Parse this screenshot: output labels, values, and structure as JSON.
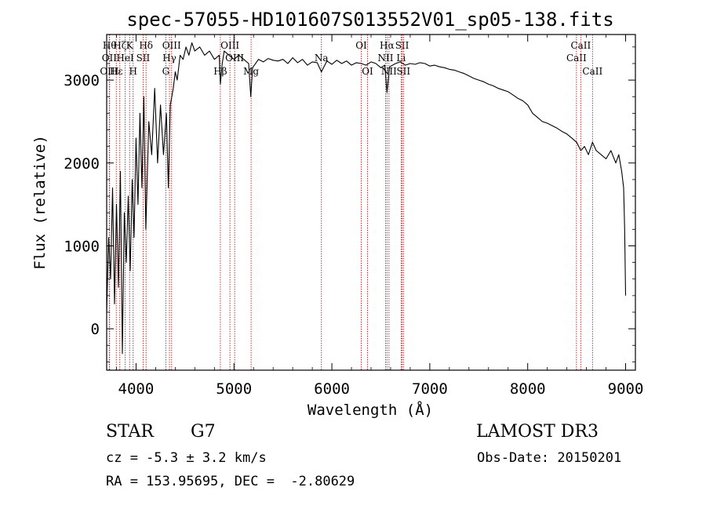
{
  "chart_data": {
    "type": "line",
    "title": "spec-57055-HD101607S013552V01_sp05-138.fits",
    "xlabel": "Wavelength (Å)",
    "ylabel": "Flux (relative)",
    "xlim": [
      3700,
      9100
    ],
    "ylim": [
      -500,
      3550
    ],
    "xticks": [
      4000,
      5000,
      6000,
      7000,
      8000,
      9000
    ],
    "yticks": [
      0,
      1000,
      2000,
      3000
    ],
    "series": [
      {
        "name": "flux",
        "x": [
          3700,
          3720,
          3740,
          3760,
          3780,
          3800,
          3820,
          3840,
          3860,
          3880,
          3900,
          3920,
          3940,
          3960,
          3980,
          4000,
          4020,
          4040,
          4060,
          4080,
          4100,
          4130,
          4160,
          4190,
          4220,
          4250,
          4280,
          4310,
          4330,
          4350,
          4380,
          4400,
          4420,
          4450,
          4480,
          4510,
          4540,
          4570,
          4600,
          4650,
          4700,
          4750,
          4800,
          4850,
          4861,
          4880,
          4900,
          4950,
          5000,
          5050,
          5100,
          5150,
          5172,
          5190,
          5250,
          5300,
          5350,
          5400,
          5450,
          5500,
          5550,
          5600,
          5650,
          5700,
          5750,
          5800,
          5850,
          5893,
          5950,
          6000,
          6050,
          6100,
          6150,
          6200,
          6250,
          6300,
          6350,
          6400,
          6450,
          6500,
          6540,
          6563,
          6590,
          6650,
          6700,
          6750,
          6800,
          6850,
          6900,
          6950,
          7000,
          7050,
          7100,
          7150,
          7200,
          7250,
          7300,
          7350,
          7400,
          7450,
          7500,
          7550,
          7600,
          7650,
          7700,
          7750,
          7800,
          7850,
          7900,
          7950,
          8000,
          8050,
          8100,
          8150,
          8200,
          8250,
          8300,
          8350,
          8400,
          8450,
          8500,
          8542,
          8580,
          8620,
          8662,
          8700,
          8750,
          8800,
          8850,
          8900,
          8930,
          8960,
          8980,
          8990,
          9000
        ],
        "values": [
          200,
          1100,
          600,
          1700,
          300,
          1500,
          500,
          1900,
          -300,
          1400,
          800,
          1600,
          700,
          1800,
          1100,
          2300,
          1500,
          2600,
          1700,
          2800,
          1200,
          2500,
          2100,
          2900,
          2000,
          2700,
          2100,
          2600,
          1700,
          2700,
          2900,
          3100,
          3000,
          3300,
          3250,
          3400,
          3300,
          3450,
          3350,
          3400,
          3300,
          3350,
          3250,
          3300,
          2950,
          3200,
          3350,
          3300,
          3250,
          3300,
          3250,
          3200,
          2800,
          3150,
          3250,
          3220,
          3260,
          3240,
          3230,
          3250,
          3200,
          3270,
          3210,
          3250,
          3180,
          3220,
          3210,
          3100,
          3230,
          3190,
          3240,
          3200,
          3230,
          3180,
          3210,
          3200,
          3180,
          3220,
          3200,
          3150,
          3180,
          2850,
          3160,
          3200,
          3220,
          3180,
          3200,
          3190,
          3210,
          3200,
          3170,
          3180,
          3160,
          3150,
          3130,
          3120,
          3100,
          3080,
          3050,
          3020,
          3000,
          2980,
          2950,
          2930,
          2900,
          2880,
          2860,
          2820,
          2780,
          2750,
          2700,
          2600,
          2550,
          2500,
          2480,
          2450,
          2420,
          2380,
          2350,
          2300,
          2250,
          2150,
          2200,
          2100,
          2250,
          2150,
          2100,
          2050,
          2150,
          2000,
          2100,
          1900,
          1700,
          1200,
          400
        ]
      }
    ],
    "line_labels": [
      {
        "wave": 3730,
        "name": "Hθ",
        "row": 1
      },
      {
        "wave": 3727,
        "name": "OII",
        "row": 2
      },
      {
        "wave": 3727,
        "name": "OIII",
        "row": 3
      },
      {
        "wave": 3798,
        "name": "Hε",
        "row": 3
      },
      {
        "wave": 3834,
        "name": "Hζ",
        "row": 1
      },
      {
        "wave": 3889,
        "name": "HeI",
        "row": 2
      },
      {
        "wave": 3934,
        "name": "K",
        "row": 1
      },
      {
        "wave": 3970,
        "name": "H",
        "row": 3
      },
      {
        "wave": 4072,
        "name": "SII",
        "row": 2
      },
      {
        "wave": 4102,
        "name": "Hδ",
        "row": 1
      },
      {
        "wave": 4304,
        "name": "G",
        "row": 3
      },
      {
        "wave": 4341,
        "name": "Hγ",
        "row": 2
      },
      {
        "wave": 4363,
        "name": "OIII",
        "row": 1
      },
      {
        "wave": 4861,
        "name": "Hβ",
        "row": 3
      },
      {
        "wave": 4959,
        "name": "OIII",
        "row": 1
      },
      {
        "wave": 5007,
        "name": "OIII",
        "row": 2
      },
      {
        "wave": 5175,
        "name": "Mg",
        "row": 3
      },
      {
        "wave": 5893,
        "name": "Na",
        "row": 2
      },
      {
        "wave": 6300,
        "name": "OI",
        "row": 1
      },
      {
        "wave": 6364,
        "name": "OI",
        "row": 3
      },
      {
        "wave": 6548,
        "name": "NII",
        "row": 2
      },
      {
        "wave": 6563,
        "name": "Hα",
        "row": 1
      },
      {
        "wave": 6583,
        "name": "NII",
        "row": 3
      },
      {
        "wave": 6707,
        "name": "Li",
        "row": 2
      },
      {
        "wave": 6717,
        "name": "SII",
        "row": 1
      },
      {
        "wave": 6731,
        "name": "SII",
        "row": 3
      },
      {
        "wave": 8498,
        "name": "CaII",
        "row": 2
      },
      {
        "wave": 8542,
        "name": "CaII",
        "row": 1
      },
      {
        "wave": 8662,
        "name": "CaII",
        "row": 3
      }
    ],
    "grid": false,
    "line_color": "#000000",
    "marker_line_color": "#b22222"
  },
  "info": {
    "object_class": "STAR",
    "subclass": "G7",
    "survey": "LAMOST DR3",
    "cz": "cz = -5.3 ± 3.2 km/s",
    "obs_date": "Obs-Date: 20150201",
    "coords": "RA = 153.95695, DEC =  -2.80629"
  }
}
